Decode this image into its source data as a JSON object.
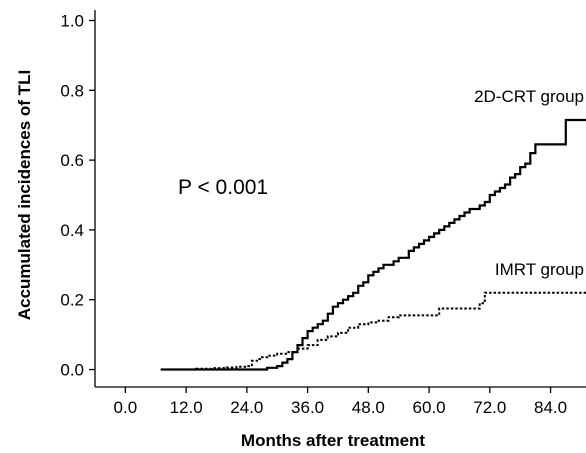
{
  "chart_data": {
    "type": "line",
    "title": "",
    "xlabel": "Months after treatment",
    "ylabel": "Accumulated incidences of TLI",
    "xlim": [
      -6,
      91
    ],
    "ylim": [
      -0.05,
      1.03
    ],
    "x_ticks": [
      0,
      12,
      24,
      36,
      48,
      60,
      72,
      84
    ],
    "x_tick_labels": [
      "0.0",
      "12.0",
      "24.0",
      "36.0",
      "48.0",
      "60.0",
      "72.0",
      "84.0"
    ],
    "y_ticks": [
      0,
      0.2,
      0.4,
      0.6,
      0.8,
      1.0
    ],
    "y_tick_labels": [
      "0.0",
      "0.2",
      "0.4",
      "0.6",
      "0.8",
      "1.0"
    ],
    "grid": false,
    "annotation": "P < 0.001",
    "series": [
      {
        "name": "2D-CRT group",
        "style": "solid",
        "color": "#000000",
        "step": true,
        "x": [
          7,
          28,
          30,
          31,
          32,
          33,
          34,
          35,
          36,
          37,
          38,
          39,
          40,
          41,
          42,
          43,
          44,
          45,
          46,
          47,
          48,
          49,
          50,
          51,
          52,
          53,
          54,
          56,
          57,
          58,
          59,
          60,
          61,
          62,
          63,
          64,
          65,
          66,
          67,
          68,
          69,
          70,
          71,
          72,
          73,
          74,
          75,
          76,
          77,
          78,
          79,
          80,
          81,
          87,
          91
        ],
        "values": [
          0,
          0.005,
          0.01,
          0.02,
          0.03,
          0.05,
          0.07,
          0.09,
          0.11,
          0.12,
          0.13,
          0.14,
          0.16,
          0.18,
          0.19,
          0.2,
          0.21,
          0.22,
          0.24,
          0.25,
          0.27,
          0.28,
          0.29,
          0.3,
          0.3,
          0.31,
          0.32,
          0.34,
          0.35,
          0.36,
          0.37,
          0.38,
          0.39,
          0.4,
          0.41,
          0.42,
          0.43,
          0.44,
          0.45,
          0.46,
          0.46,
          0.47,
          0.48,
          0.5,
          0.51,
          0.52,
          0.53,
          0.55,
          0.56,
          0.58,
          0.59,
          0.62,
          0.645,
          0.715,
          0.715
        ]
      },
      {
        "name": "IMRT group",
        "style": "dotted",
        "color": "#000000",
        "step": true,
        "x": [
          7,
          14,
          17,
          20,
          22,
          24,
          25,
          26,
          27,
          28,
          30,
          32,
          34,
          36,
          38,
          40,
          42,
          44,
          46,
          48,
          50,
          52,
          54,
          62,
          70,
          71,
          91
        ],
        "values": [
          0,
          0.002,
          0.004,
          0.006,
          0.008,
          0.01,
          0.025,
          0.03,
          0.035,
          0.04,
          0.045,
          0.05,
          0.06,
          0.07,
          0.085,
          0.095,
          0.105,
          0.12,
          0.13,
          0.135,
          0.14,
          0.15,
          0.155,
          0.175,
          0.19,
          0.22,
          0.22
        ]
      }
    ]
  }
}
